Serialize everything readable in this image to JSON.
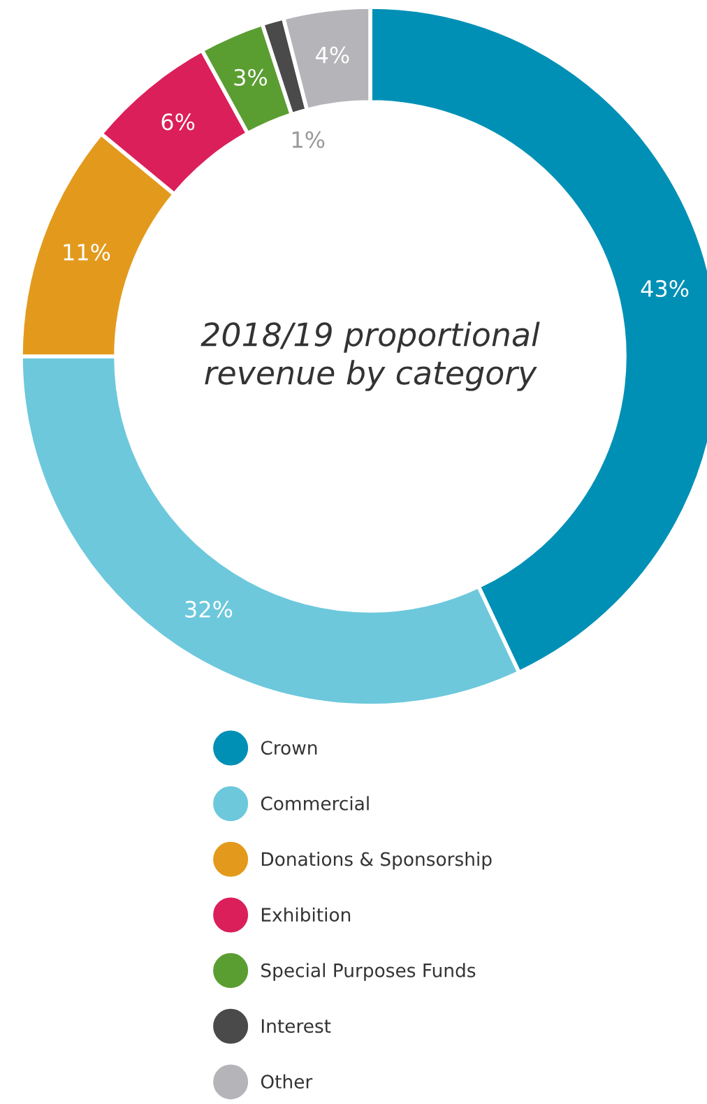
{
  "chart_data": {
    "type": "donut",
    "title": "2018/19 proportional\nrevenue by category",
    "categories": [
      "Crown",
      "Commercial",
      "Donations & Sponsorship",
      "Exhibition",
      "Special Purposes Funds",
      "Interest",
      "Other"
    ],
    "values": [
      43,
      32,
      11,
      6,
      3,
      1,
      4
    ],
    "value_labels": [
      "43%",
      "32%",
      "11%",
      "6%",
      "3%",
      "1%",
      "4%"
    ],
    "colors": [
      "#0090b5",
      "#6dc8dc",
      "#e39a1c",
      "#db1f5a",
      "#5a9e32",
      "#4a4a4a",
      "#b5b5b9"
    ],
    "legend": "bottom"
  }
}
